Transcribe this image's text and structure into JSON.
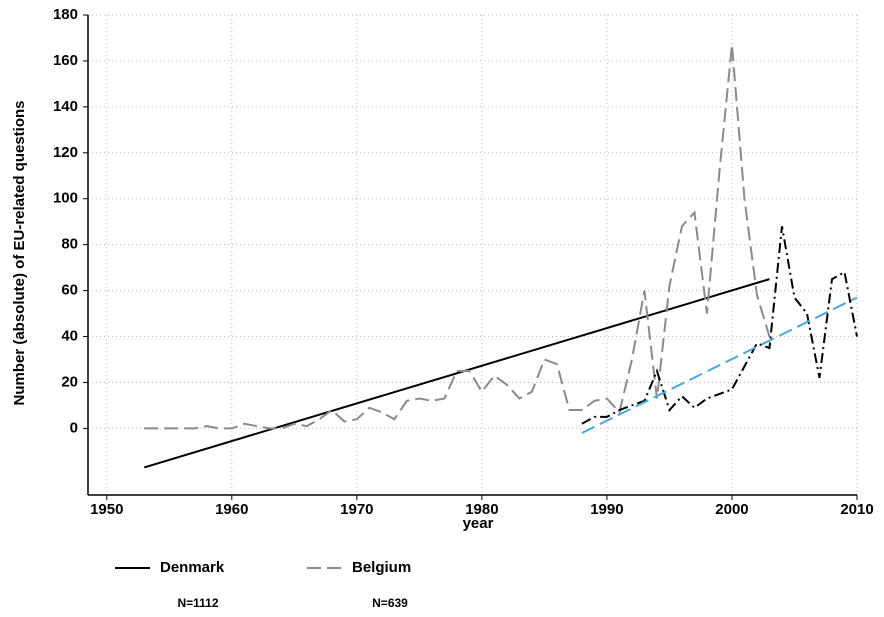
{
  "chart_data": {
    "type": "line",
    "xlabel": "year",
    "ylabel": "Number (absolute) of EU-related questions",
    "xlim": [
      1948.5,
      2010
    ],
    "ylim": [
      -29,
      180
    ],
    "xticks": [
      1950,
      1960,
      1970,
      1980,
      1990,
      2000,
      2010
    ],
    "yticks": [
      0,
      20,
      40,
      60,
      80,
      100,
      120,
      140,
      160,
      180
    ],
    "grid": true,
    "series": [
      {
        "name": "Denmark",
        "color": "#000000",
        "dash": "solid",
        "x": [
          1953,
          2003
        ],
        "values": [
          -17,
          65
        ]
      },
      {
        "name": "Belgium",
        "color": "#8a8a8a",
        "dash": "long",
        "x": [
          1953,
          1954,
          1955,
          1956,
          1957,
          1958,
          1959,
          1960,
          1961,
          1962,
          1963,
          1964,
          1965,
          1966,
          1967,
          1968,
          1969,
          1970,
          1971,
          1972,
          1973,
          1974,
          1975,
          1976,
          1977,
          1978,
          1979,
          1980,
          1981,
          1982,
          1983,
          1984,
          1985,
          1986,
          1987,
          1988,
          1989,
          1990,
          1991,
          1992,
          1993,
          1994,
          1995,
          1996,
          1997,
          1998,
          1999,
          2000,
          2001,
          2002,
          2003
        ],
        "values": [
          0,
          0,
          0,
          0,
          0,
          1,
          0,
          0,
          2,
          1,
          0,
          0,
          2,
          1,
          4,
          8,
          3,
          4,
          9,
          7,
          4,
          12,
          13,
          12,
          13,
          25,
          25,
          16,
          23,
          19,
          13,
          16,
          30,
          28,
          8,
          8,
          12,
          13,
          7,
          30,
          60,
          13,
          62,
          88,
          94,
          50,
          112,
          167,
          100,
          58,
          40
        ]
      },
      {
        "color": "#000000",
        "dash": "dashdot",
        "x": [
          1988,
          1989,
          1990,
          1991,
          1992,
          1993,
          1994,
          1995,
          1996,
          1997,
          1998,
          1999,
          2000,
          2001,
          2002,
          2003,
          2004,
          2005,
          2006,
          2007,
          2008,
          2009,
          2010
        ],
        "values": [
          2,
          5,
          5,
          8,
          10,
          12,
          25,
          8,
          14,
          9,
          13,
          15,
          17,
          27,
          37,
          35,
          88,
          57,
          50,
          22,
          65,
          68,
          40
        ]
      },
      {
        "color": "#4aa8dc",
        "dash": "long",
        "x": [
          1988,
          2010
        ],
        "values": [
          -2,
          57
        ]
      }
    ],
    "notes": [
      "N=1112",
      "N=639"
    ]
  }
}
